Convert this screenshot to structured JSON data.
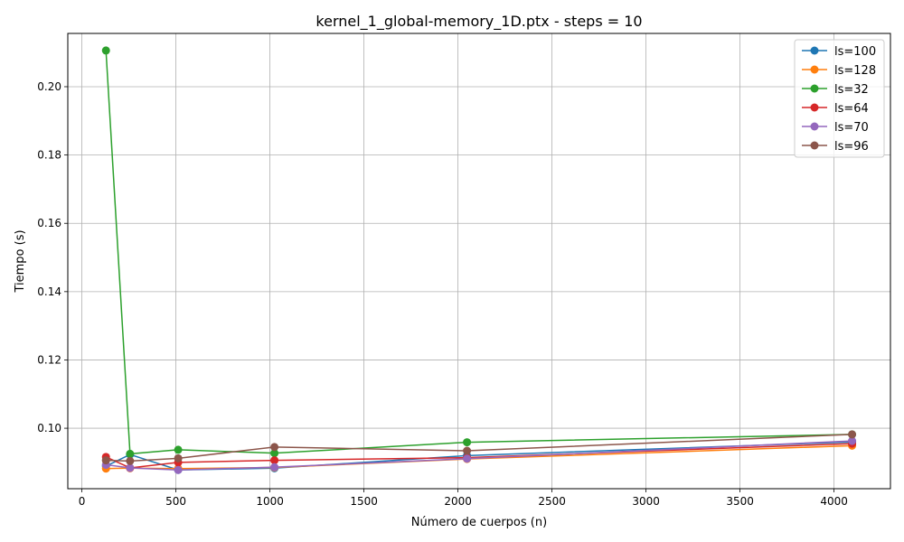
{
  "chart_data": {
    "type": "line",
    "title": "kernel_1_global-memory_1D.ptx - steps = 10",
    "xlabel": "Número de cuerpos (n)",
    "ylabel": "Tiempo (s)",
    "x": [
      128,
      256,
      512,
      1024,
      2048,
      4096
    ],
    "xlim": [
      -75,
      4300
    ],
    "ylim": [
      0.0823,
      0.2156
    ],
    "xticks": [
      0,
      500,
      1000,
      1500,
      2000,
      2500,
      3000,
      3500,
      4000
    ],
    "yticks": [
      0.1,
      0.12,
      0.14,
      0.16,
      0.18,
      0.2
    ],
    "ytick_labels": [
      "0.10",
      "0.12",
      "0.14",
      "0.16",
      "0.18",
      "0.20"
    ],
    "grid": true,
    "legend_position": "top-right",
    "series": [
      {
        "name": "ls=100",
        "color": "#1f77b4",
        "values": [
          0.0889,
          0.0923,
          0.0878,
          0.0883,
          0.092,
          0.096
        ]
      },
      {
        "name": "ls=128",
        "color": "#ff7f0e",
        "values": [
          0.0882,
          0.0883,
          0.0882,
          0.0885,
          0.091,
          0.0949
        ]
      },
      {
        "name": "ls=32",
        "color": "#2ca02c",
        "values": [
          0.2106,
          0.0925,
          0.0937,
          0.0927,
          0.0959,
          0.0982
        ]
      },
      {
        "name": "ls=64",
        "color": "#d62728",
        "values": [
          0.0916,
          0.0884,
          0.09,
          0.0906,
          0.0914,
          0.0955
        ]
      },
      {
        "name": "ls=70",
        "color": "#9467bd",
        "values": [
          0.0893,
          0.0884,
          0.0878,
          0.0886,
          0.0911,
          0.0963
        ]
      },
      {
        "name": "ls=96",
        "color": "#8c564b",
        "values": [
          0.0906,
          0.0904,
          0.0912,
          0.0945,
          0.0934,
          0.0982
        ]
      }
    ]
  }
}
